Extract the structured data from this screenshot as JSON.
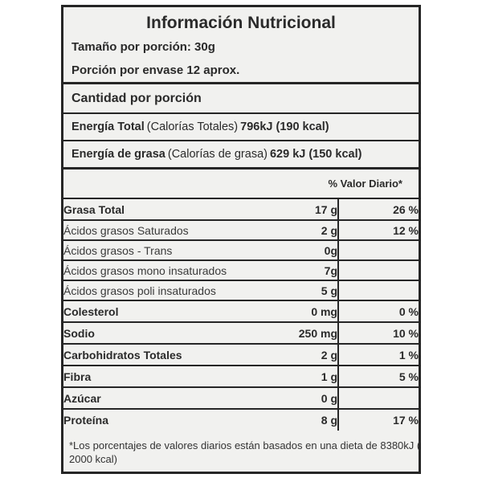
{
  "label": {
    "title": "Información Nutricional",
    "serving_size": "Tamaño por porción: 30g",
    "servings_per_container": "Porción por envase 12 aprox.",
    "amount_per_serving": "Cantidad por porción",
    "energy_total": {
      "bold": "Energía Total",
      "paren": "(Calorías Totales)",
      "value": "796kJ (190 kcal)"
    },
    "energy_fat": {
      "bold": "Energía de grasa",
      "paren": "(Calorías de grasa)",
      "value": "629 kJ (150 kcal)"
    },
    "dv_header": "% Valor Diario*",
    "rows": [
      {
        "name": "Grasa Total",
        "amount": "17 g",
        "pct": "26 %",
        "main": true
      },
      {
        "name": "Ácidos grasos Saturados",
        "amount": "2 g",
        "pct": "12 %",
        "main": false
      },
      {
        "name": "Ácidos grasos - Trans",
        "amount": "0g",
        "pct": "",
        "main": false
      },
      {
        "name": "Ácidos grasos mono insaturados",
        "amount": "7g",
        "pct": "",
        "main": false
      },
      {
        "name": "Ácidos grasos poli insaturados",
        "amount": "5 g",
        "pct": "",
        "main": false
      },
      {
        "name": "Colesterol",
        "amount": "0 mg",
        "pct": "0 %",
        "main": true
      },
      {
        "name": "Sodio",
        "amount": "250 mg",
        "pct": "10 %",
        "main": true
      },
      {
        "name": "Carbohidratos Totales",
        "amount": "2 g",
        "pct": "1 %",
        "main": true
      },
      {
        "name": "Fibra",
        "amount": "1 g",
        "pct": "5 %",
        "main": true
      },
      {
        "name": "Azúcar",
        "amount": "0 g",
        "pct": "",
        "main": true
      },
      {
        "name": "Proteína",
        "amount": "8 g",
        "pct": "17 %",
        "main": true
      }
    ],
    "footnote": "*Los porcentajes de valores diarios están basados en una dieta de 8380kJ ( 2000 kcal)"
  }
}
